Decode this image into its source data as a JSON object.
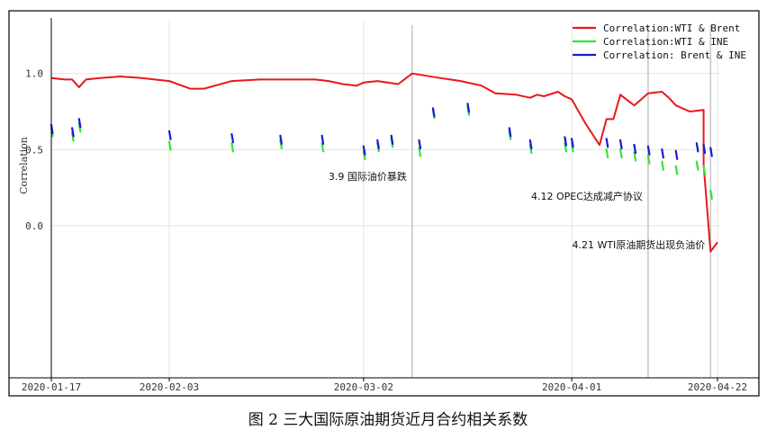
{
  "caption": "图 2 三大国际原油期货近月合约相关系数",
  "chart_data": {
    "type": "line",
    "ylabel": "Correlation",
    "ylim": [
      -1.0,
      1.4
    ],
    "xlim": [
      "2020-01-17",
      "2020-04-22"
    ],
    "grid": true,
    "legend_position": "top-right",
    "y_ticks": [
      {
        "value": 1.0,
        "label": "1.0"
      },
      {
        "value": 0.5,
        "label": "0.5"
      },
      {
        "value": 0.0,
        "label": "0.0"
      }
    ],
    "x_ticks": [
      {
        "date": "2020-01-17",
        "label": "2020-01-17"
      },
      {
        "date": "2020-02-03",
        "label": "2020-02-03"
      },
      {
        "date": "2020-03-02",
        "label": "2020-03-02"
      },
      {
        "date": "2020-04-01",
        "label": "2020-04-01"
      },
      {
        "date": "2020-04-22",
        "label": "2020-04-22"
      }
    ],
    "annotations": [
      {
        "date": "2020-03-09",
        "text": "3.9 国际油价暴跌",
        "y": 0.3
      },
      {
        "date": "2020-04-12",
        "text": "4.12 OPEC达成减产协议",
        "y": 0.17
      },
      {
        "date": "2020-04-21",
        "text": "4.21 WTI原油期货出现负油价",
        "y": -0.15
      }
    ],
    "series": [
      {
        "name": "Correlation:WTI & Brent",
        "color": "#e8181b",
        "style": "line",
        "x": [
          "2020-01-17",
          "2020-01-19",
          "2020-01-20",
          "2020-01-21",
          "2020-01-22",
          "2020-01-24",
          "2020-01-27",
          "2020-01-30",
          "2020-02-03",
          "2020-02-06",
          "2020-02-08",
          "2020-02-12",
          "2020-02-16",
          "2020-02-20",
          "2020-02-24",
          "2020-02-26",
          "2020-02-28",
          "2020-03-01",
          "2020-03-02",
          "2020-03-04",
          "2020-03-07",
          "2020-03-09",
          "2020-03-13",
          "2020-03-16",
          "2020-03-19",
          "2020-03-21",
          "2020-03-24",
          "2020-03-26",
          "2020-03-27",
          "2020-03-28",
          "2020-03-30",
          "2020-03-31",
          "2020-04-01",
          "2020-04-02",
          "2020-04-03",
          "2020-04-05",
          "2020-04-06",
          "2020-04-07",
          "2020-04-08",
          "2020-04-10",
          "2020-04-12",
          "2020-04-14",
          "2020-04-15",
          "2020-04-16",
          "2020-04-18",
          "2020-04-20",
          "2020-04-20",
          "2020-04-21",
          "2020-04-22"
        ],
        "y": [
          0.97,
          0.96,
          0.96,
          0.91,
          0.96,
          0.97,
          0.98,
          0.97,
          0.95,
          0.9,
          0.9,
          0.95,
          0.96,
          0.96,
          0.96,
          0.95,
          0.93,
          0.92,
          0.94,
          0.95,
          0.93,
          1.0,
          0.97,
          0.95,
          0.92,
          0.87,
          0.86,
          0.84,
          0.86,
          0.85,
          0.88,
          0.85,
          0.83,
          0.75,
          0.67,
          0.53,
          0.7,
          0.7,
          0.86,
          0.79,
          0.87,
          0.88,
          0.84,
          0.79,
          0.75,
          0.76,
          0.4,
          -0.17,
          -0.11
        ]
      },
      {
        "name": "Correlation:WTI & INE",
        "color": "#32e632",
        "style": "segments",
        "x": [
          "2020-01-17",
          "2020-01-20",
          "2020-01-21",
          "2020-02-03",
          "2020-02-12",
          "2020-02-19",
          "2020-02-25",
          "2020-03-02",
          "2020-03-04",
          "2020-03-06",
          "2020-03-10",
          "2020-03-12",
          "2020-03-17",
          "2020-03-23",
          "2020-03-26",
          "2020-03-31",
          "2020-04-01",
          "2020-04-06",
          "2020-04-08",
          "2020-04-10",
          "2020-04-12",
          "2020-04-14",
          "2020-04-16",
          "2020-04-19",
          "2020-04-20",
          "2020-04-21"
        ],
        "y": [
          0.6,
          0.57,
          0.63,
          0.51,
          0.5,
          0.52,
          0.5,
          0.45,
          0.5,
          0.53,
          0.47,
          0.72,
          0.74,
          0.58,
          0.49,
          0.5,
          0.5,
          0.46,
          0.46,
          0.44,
          0.42,
          0.38,
          0.35,
          0.38,
          0.35,
          0.19
        ]
      },
      {
        "name": "Correlation: Brent & INE",
        "color": "#1a1ad6",
        "style": "segments",
        "x": [
          "2020-01-17",
          "2020-01-20",
          "2020-01-21",
          "2020-02-03",
          "2020-02-12",
          "2020-02-19",
          "2020-02-25",
          "2020-03-02",
          "2020-03-04",
          "2020-03-06",
          "2020-03-10",
          "2020-03-12",
          "2020-03-17",
          "2020-03-23",
          "2020-03-26",
          "2020-03-31",
          "2020-04-01",
          "2020-04-06",
          "2020-04-08",
          "2020-04-10",
          "2020-04-12",
          "2020-04-14",
          "2020-04-16",
          "2020-04-19",
          "2020-04-20",
          "2020-04-21"
        ],
        "y": [
          0.62,
          0.6,
          0.66,
          0.58,
          0.56,
          0.55,
          0.55,
          0.48,
          0.52,
          0.55,
          0.52,
          0.73,
          0.76,
          0.6,
          0.52,
          0.54,
          0.53,
          0.53,
          0.52,
          0.49,
          0.48,
          0.46,
          0.45,
          0.5,
          0.49,
          0.47
        ]
      }
    ]
  }
}
